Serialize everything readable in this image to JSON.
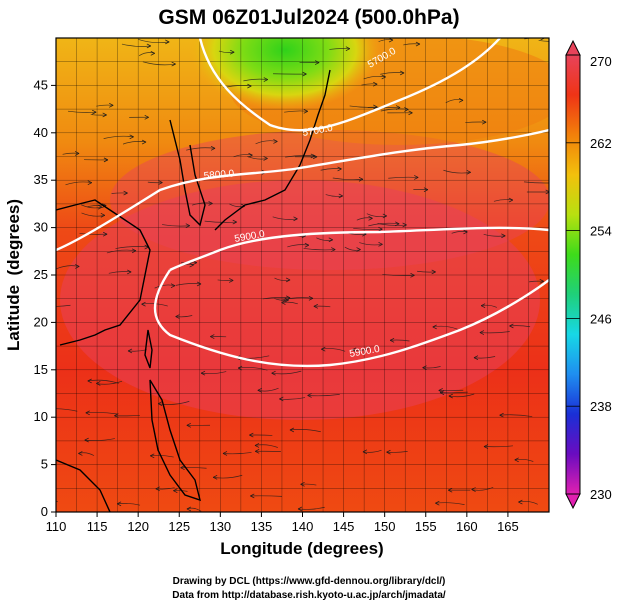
{
  "title": "GSM 06Z01Jul2024 (500.0hPa)",
  "credits": {
    "line1": "Drawing by DCL (https://www.gfd-dennou.org/library/dcl/)",
    "line2": "Data from http://database.rish.kyoto-u.ac.jp/arch/jmadata/"
  },
  "chart_data": {
    "type": "heatmap",
    "title": "GSM 06Z01Jul2024 (500.0hPa)",
    "xlabel": "Longitude (degrees)",
    "ylabel": "Latitude  (degrees)",
    "xlim": [
      110,
      170
    ],
    "ylim": [
      0,
      50
    ],
    "x_ticks": [
      110,
      115,
      120,
      125,
      130,
      135,
      140,
      145,
      150,
      155,
      160,
      165
    ],
    "y_ticks": [
      0,
      5,
      10,
      15,
      20,
      25,
      30,
      35,
      40,
      45
    ],
    "colorbar": {
      "min": 230,
      "max": 270,
      "ticks": [
        270,
        262,
        254,
        246,
        238,
        230
      ],
      "colors": [
        "#e020b0",
        "#6a0cc0",
        "#1a2fd6",
        "#1f8ef0",
        "#17d8e6",
        "#1fd07a",
        "#3edc1a",
        "#b8e010",
        "#f2c00c",
        "#f2800a",
        "#ef3416",
        "#e8435a"
      ]
    },
    "contour_labels": [
      "5700.0",
      "5700.0",
      "5800.0",
      "5900.0",
      "5900.0"
    ],
    "grid": true,
    "overlays": [
      "streamlines",
      "coastlines",
      "geopotential height contours"
    ]
  }
}
